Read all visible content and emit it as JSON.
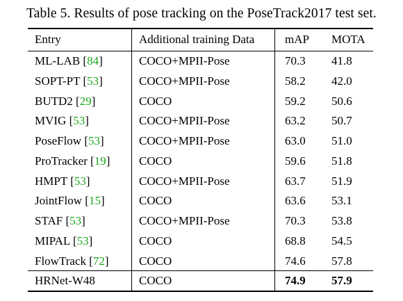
{
  "caption": "Table 5. Results of pose tracking on the PoseTrack2017 test set.",
  "columns": {
    "entry": "Entry",
    "data": "Additional training Data",
    "map": "mAP",
    "mota": "MOTA"
  },
  "rows": [
    {
      "name": "ML-LAB",
      "ref": "84",
      "data": "COCO+MPII-Pose",
      "map": "70.3",
      "mota": "41.8"
    },
    {
      "name": "SOPT-PT",
      "ref": "53",
      "data": "COCO+MPII-Pose",
      "map": "58.2",
      "mota": "42.0"
    },
    {
      "name": "BUTD2",
      "ref": "29",
      "data": "COCO",
      "map": "59.2",
      "mota": "50.6"
    },
    {
      "name": "MVIG",
      "ref": "53",
      "data": "COCO+MPII-Pose",
      "map": "63.2",
      "mota": "50.7"
    },
    {
      "name": "PoseFlow",
      "ref": "53",
      "data": "COCO+MPII-Pose",
      "map": "63.0",
      "mota": "51.0"
    },
    {
      "name": "ProTracker",
      "ref": "19",
      "data": "COCO",
      "map": "59.6",
      "mota": "51.8"
    },
    {
      "name": "HMPT",
      "ref": "53",
      "data": "COCO+MPII-Pose",
      "map": "63.7",
      "mota": "51.9"
    },
    {
      "name": "JointFlow",
      "ref": "15",
      "data": "COCO",
      "map": "63.6",
      "mota": "53.1"
    },
    {
      "name": "STAF",
      "ref": "53",
      "data": "COCO+MPII-Pose",
      "map": "70.3",
      "mota": "53.8"
    },
    {
      "name": "MIPAL",
      "ref": "53",
      "data": "COCO",
      "map": "68.8",
      "mota": "54.5"
    },
    {
      "name": "FlowTrack",
      "ref": "72",
      "data": "COCO",
      "map": "74.6",
      "mota": "57.8"
    }
  ],
  "final_row": {
    "name": "HRNet-W48",
    "data": "COCO",
    "map": "74.9",
    "mota": "57.9"
  },
  "colors": {
    "reference_link": "#1aa61a"
  }
}
